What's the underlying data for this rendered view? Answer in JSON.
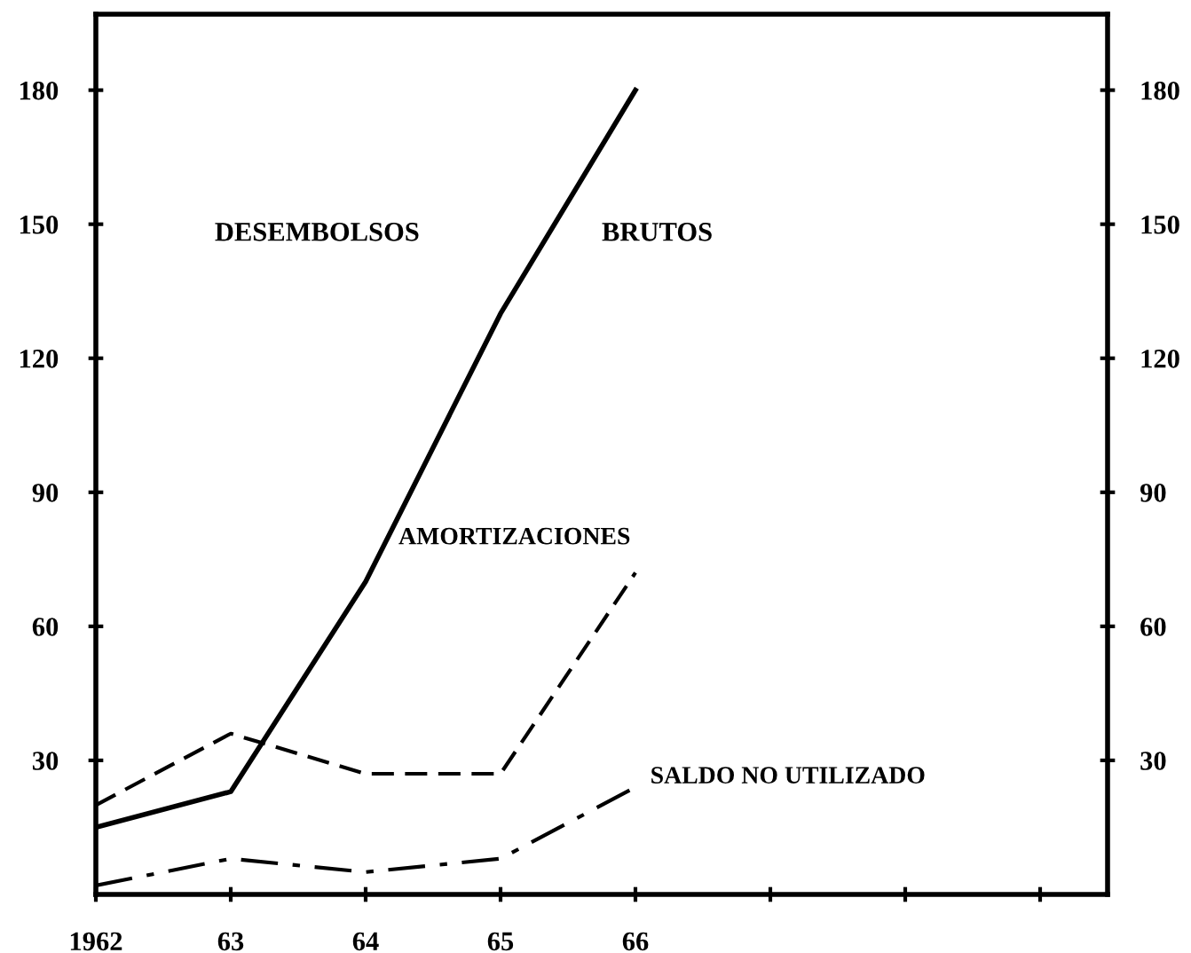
{
  "chart_data": {
    "type": "line",
    "x": [
      1962,
      1963,
      1964,
      1965,
      1966
    ],
    "series": [
      {
        "name": "DESEMBOLSOS BRUTOS",
        "color": "#000000",
        "line_style": "solid",
        "values": [
          15,
          23,
          70,
          130,
          180
        ]
      },
      {
        "name": "AMORTIZACIONES",
        "color": "#000000",
        "line_style": "dashed",
        "values": [
          20,
          36,
          27,
          27,
          72
        ]
      },
      {
        "name": "SALDO NO UTILIZADO",
        "color": "#000000",
        "line_style": "dashdot",
        "values": [
          2,
          8,
          5,
          8,
          24
        ]
      }
    ],
    "xlim": [
      1962,
      1969.5
    ],
    "xticks": [
      {
        "value": 1962,
        "label": "1962"
      },
      {
        "value": 1963,
        "label": "63"
      },
      {
        "value": 1964,
        "label": "64"
      },
      {
        "value": 1965,
        "label": "65"
      },
      {
        "value": 1966,
        "label": "66"
      },
      {
        "value": 1967,
        "label": null
      },
      {
        "value": 1968,
        "label": null
      },
      {
        "value": 1969,
        "label": null
      }
    ],
    "ylim": [
      0,
      197
    ],
    "yticks": [
      30,
      60,
      90,
      120,
      150,
      180
    ],
    "y2lim": [
      0,
      197
    ],
    "y2ticks": [
      30,
      60,
      90,
      120,
      150,
      180
    ],
    "marker": "none",
    "grid": false,
    "legend": false
  }
}
